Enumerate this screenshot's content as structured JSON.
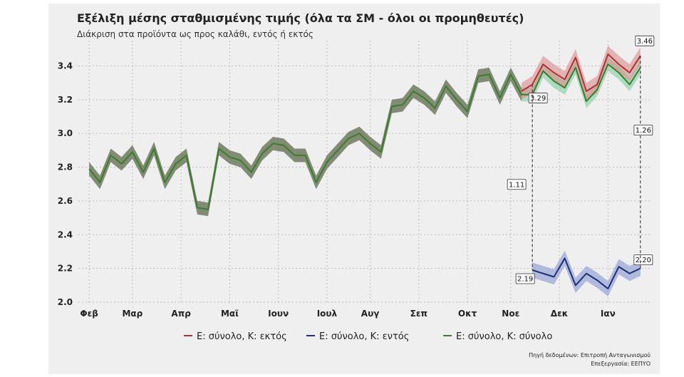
{
  "title": "Εξέλιξη μέσης σταθμισμένης τιμής (όλα τα ΣΜ - όλοι οι προμηθευτές)",
  "subtitle": "Διάκριση στα προϊόντα ως προς καλάθι, εντός ή εκτός",
  "source_line1": "Πηγή δεδομένων: Επιτροπή Ανταγωνισμού",
  "source_line2": "Επεξεργασία: ΕΕΠΥΟ",
  "chart_data": {
    "type": "line",
    "title": "Εξέλιξη μέσης σταθμισμένης τιμής (όλα τα ΣΜ - όλοι οι προμηθευτές)",
    "subtitle": "Διάκριση στα προϊόντα ως προς καλάθι, εντός ή εκτός",
    "x_labels": [
      "Φεβ",
      "Μαρ",
      "Απρ",
      "Μαϊ",
      "Ιουν",
      "Ιουλ",
      "Αυγ",
      "Σεπ",
      "Οκτ",
      "Νοε",
      "Δεκ",
      "Ιαν"
    ],
    "x_label_index": [
      0,
      4,
      8.5,
      13,
      17.5,
      22,
      26,
      30.5,
      35,
      39,
      43.5,
      48
    ],
    "ylim": [
      2.0,
      3.55
    ],
    "yticks": [
      2.0,
      2.2,
      2.4,
      2.6,
      2.8,
      3.0,
      3.2,
      3.4
    ],
    "ytick_labels": [
      "2.0",
      "2.2",
      "2.4",
      "2.6",
      "2.8",
      "3.0",
      "3.2",
      "3.4"
    ],
    "xlim": [
      -1,
      52
    ],
    "grid": true,
    "legend_position": "bottom",
    "series": [
      {
        "name": "Ε: σύνολο, Κ: εκτός",
        "color": "#b03030",
        "band_color": "#d98a8a",
        "x_start": 40,
        "values": [
          3.25,
          3.29,
          3.41,
          3.36,
          3.32,
          3.45,
          3.25,
          3.29,
          3.47,
          3.41,
          3.36,
          3.46
        ],
        "band": 0.05
      },
      {
        "name": "Ε: σύνολο, Κ: εντός",
        "color": "#1f2f7a",
        "band_color": "#9aa8d6",
        "x_start": 41,
        "values": [
          2.19,
          2.17,
          2.15,
          2.26,
          2.1,
          2.17,
          2.13,
          2.08,
          2.21,
          2.17,
          2.2
        ],
        "band": 0.045
      },
      {
        "name": "Ε: σύνολο, Κ: σύνολο",
        "color": "#3a7d2c",
        "band_color": "#6f7a5e",
        "band_color_late": "#88cfa5",
        "late_from": 40,
        "x_start": 0,
        "values": [
          2.79,
          2.71,
          2.87,
          2.82,
          2.89,
          2.77,
          2.91,
          2.71,
          2.82,
          2.87,
          2.56,
          2.55,
          2.91,
          2.86,
          2.84,
          2.77,
          2.88,
          2.94,
          2.93,
          2.87,
          2.87,
          2.71,
          2.83,
          2.9,
          2.97,
          3.0,
          2.94,
          2.89,
          3.16,
          3.17,
          3.25,
          3.21,
          3.15,
          3.28,
          3.2,
          3.13,
          3.34,
          3.35,
          3.21,
          3.35,
          3.23,
          3.23,
          3.37,
          3.31,
          3.27,
          3.39,
          3.19,
          3.26,
          3.41,
          3.36,
          3.29,
          3.39
        ],
        "band": 0.04
      }
    ],
    "annotations": [
      {
        "text": "3.29",
        "series": 0,
        "index": 1
      },
      {
        "text": "3.46",
        "series": 0,
        "index": 11
      },
      {
        "text": "2.19",
        "series": 1,
        "index": 0
      },
      {
        "text": "2.20",
        "series": 1,
        "index": 10
      },
      {
        "text": "1.11",
        "type": "gap",
        "x": 41
      },
      {
        "text": "1.26",
        "type": "gap",
        "x": 51
      }
    ]
  }
}
